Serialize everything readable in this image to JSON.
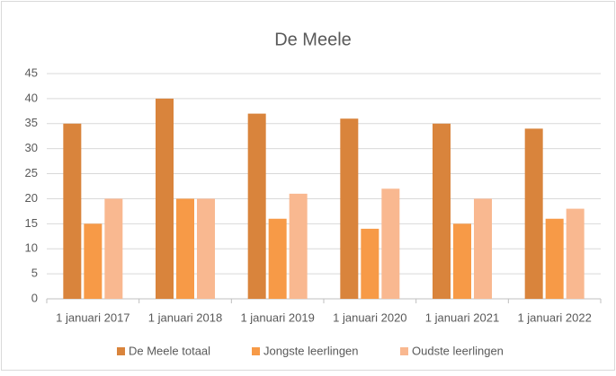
{
  "chart_data": {
    "type": "bar",
    "title": "De Meele",
    "categories": [
      "1 januari 2017",
      "1 januari 2018",
      "1 januari 2019",
      "1 januari 2020",
      "1 januari 2021",
      "1 januari 2022"
    ],
    "series": [
      {
        "name": "De Meele totaal",
        "color": "#d9843c",
        "values": [
          35,
          40,
          37,
          36,
          35,
          34
        ]
      },
      {
        "name": "Jongste leerlingen",
        "color": "#f79a47",
        "values": [
          15,
          20,
          16,
          14,
          15,
          16
        ]
      },
      {
        "name": "Oudste leerlingen",
        "color": "#f9b890",
        "values": [
          20,
          20,
          21,
          22,
          20,
          18
        ]
      }
    ],
    "ylim": [
      0,
      45
    ],
    "yticks": [
      0,
      5,
      10,
      15,
      20,
      25,
      30,
      35,
      40,
      45
    ],
    "grid": true,
    "legend": "bottom"
  }
}
